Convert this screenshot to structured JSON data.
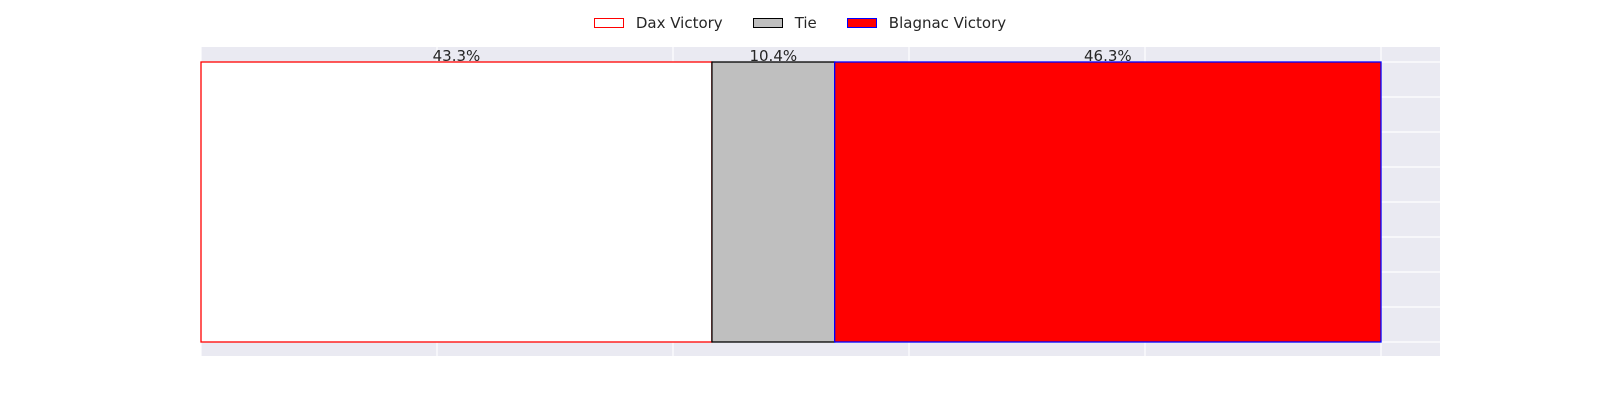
{
  "chart_data": {
    "type": "bar",
    "orientation": "horizontal",
    "stacked": true,
    "categories": [
      ""
    ],
    "series": [
      {
        "name": "Dax Victory",
        "values": [
          43.3
        ],
        "label": "43.3%",
        "fill": "#ffffff",
        "edge": "#ff0000"
      },
      {
        "name": "Tie",
        "values": [
          10.4
        ],
        "label": "10.4%",
        "fill": "#bfbfbf",
        "edge": "#000000"
      },
      {
        "name": "Blagnac Victory",
        "values": [
          46.3
        ],
        "label": "46.3%",
        "fill": "#ff0000",
        "edge": "#0000ff"
      }
    ],
    "xlim": [
      0,
      105
    ],
    "title": "",
    "xlabel": "",
    "ylabel": "",
    "grid": true,
    "tick_labels_visible": false,
    "legend_position": "top-center",
    "plot_background": "#eaeaf2"
  }
}
